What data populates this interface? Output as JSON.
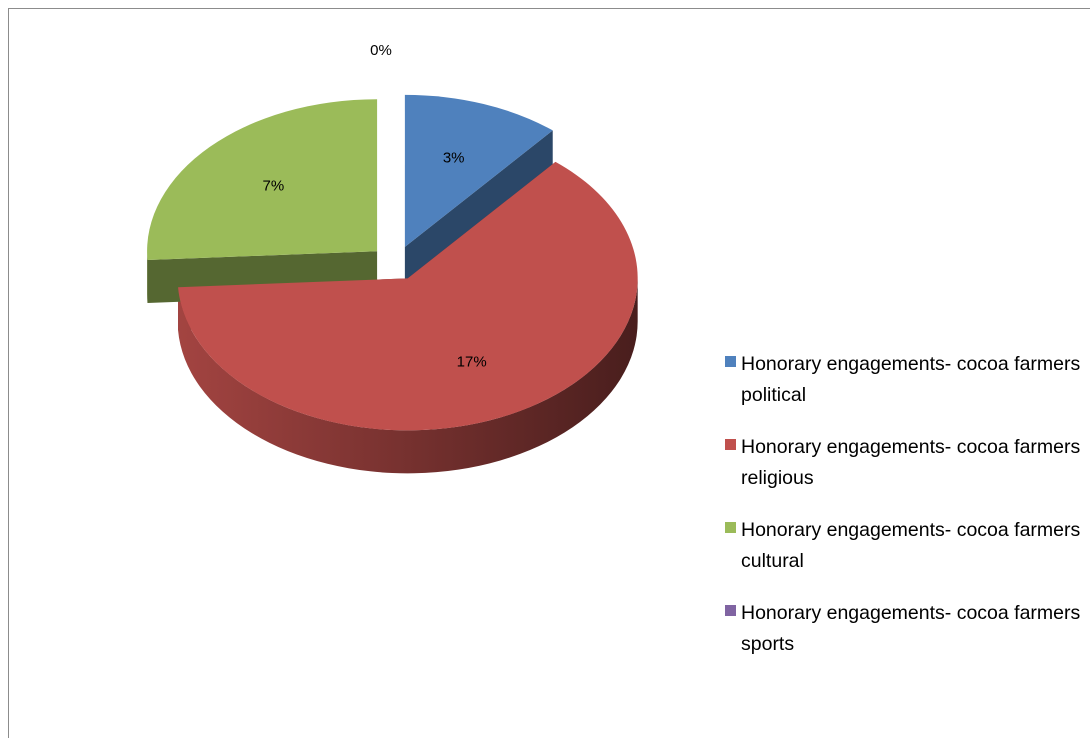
{
  "chart_data": {
    "type": "pie",
    "three_d": true,
    "exploded": true,
    "slices": [
      {
        "name": "Honorary engagements- cocoa farmers political",
        "value": 3,
        "label": "3%",
        "color": "#4f81bd"
      },
      {
        "name": "Honorary engagements- cocoa farmers religious",
        "value": 17,
        "label": "17%",
        "color": "#c0504d"
      },
      {
        "name": "Honorary engagements- cocoa farmers cultural",
        "value": 7,
        "label": "7%",
        "color": "#9bbb59"
      },
      {
        "name": "Honorary engagements- cocoa farmers sports",
        "value": 0,
        "label": "0%",
        "color": "#8064a2"
      }
    ],
    "legend_position": "right"
  }
}
